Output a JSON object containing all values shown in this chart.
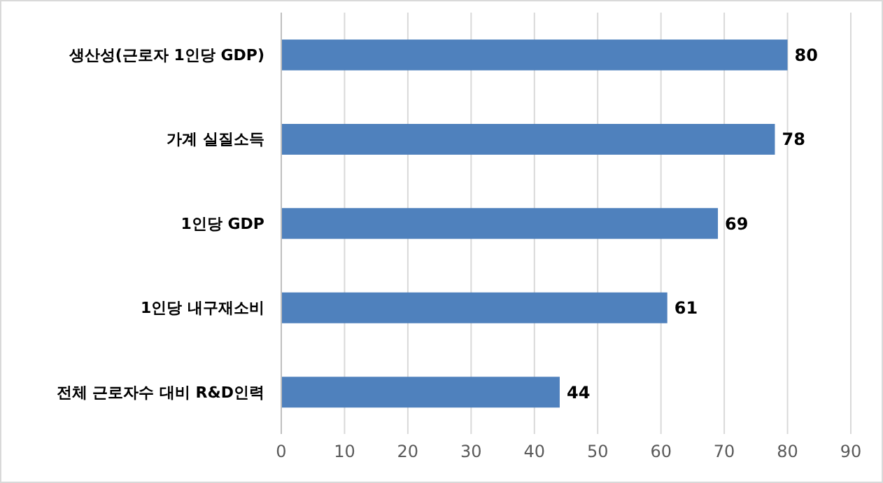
{
  "chart_data": {
    "type": "bar",
    "orientation": "horizontal",
    "categories": [
      "생산성(근로자 1인당 GDP)",
      "가계 실질소득",
      "1인당 GDP",
      "1인당 내구재소비",
      "전체 근로자수 대비 R&D인력"
    ],
    "values": [
      80,
      78,
      69,
      61,
      44
    ],
    "color": "#4f81bd",
    "data_labels": true,
    "xlim": [
      0,
      90
    ],
    "xticks": [
      0,
      10,
      20,
      30,
      40,
      50,
      60,
      70,
      80,
      90
    ],
    "grid": "x"
  }
}
